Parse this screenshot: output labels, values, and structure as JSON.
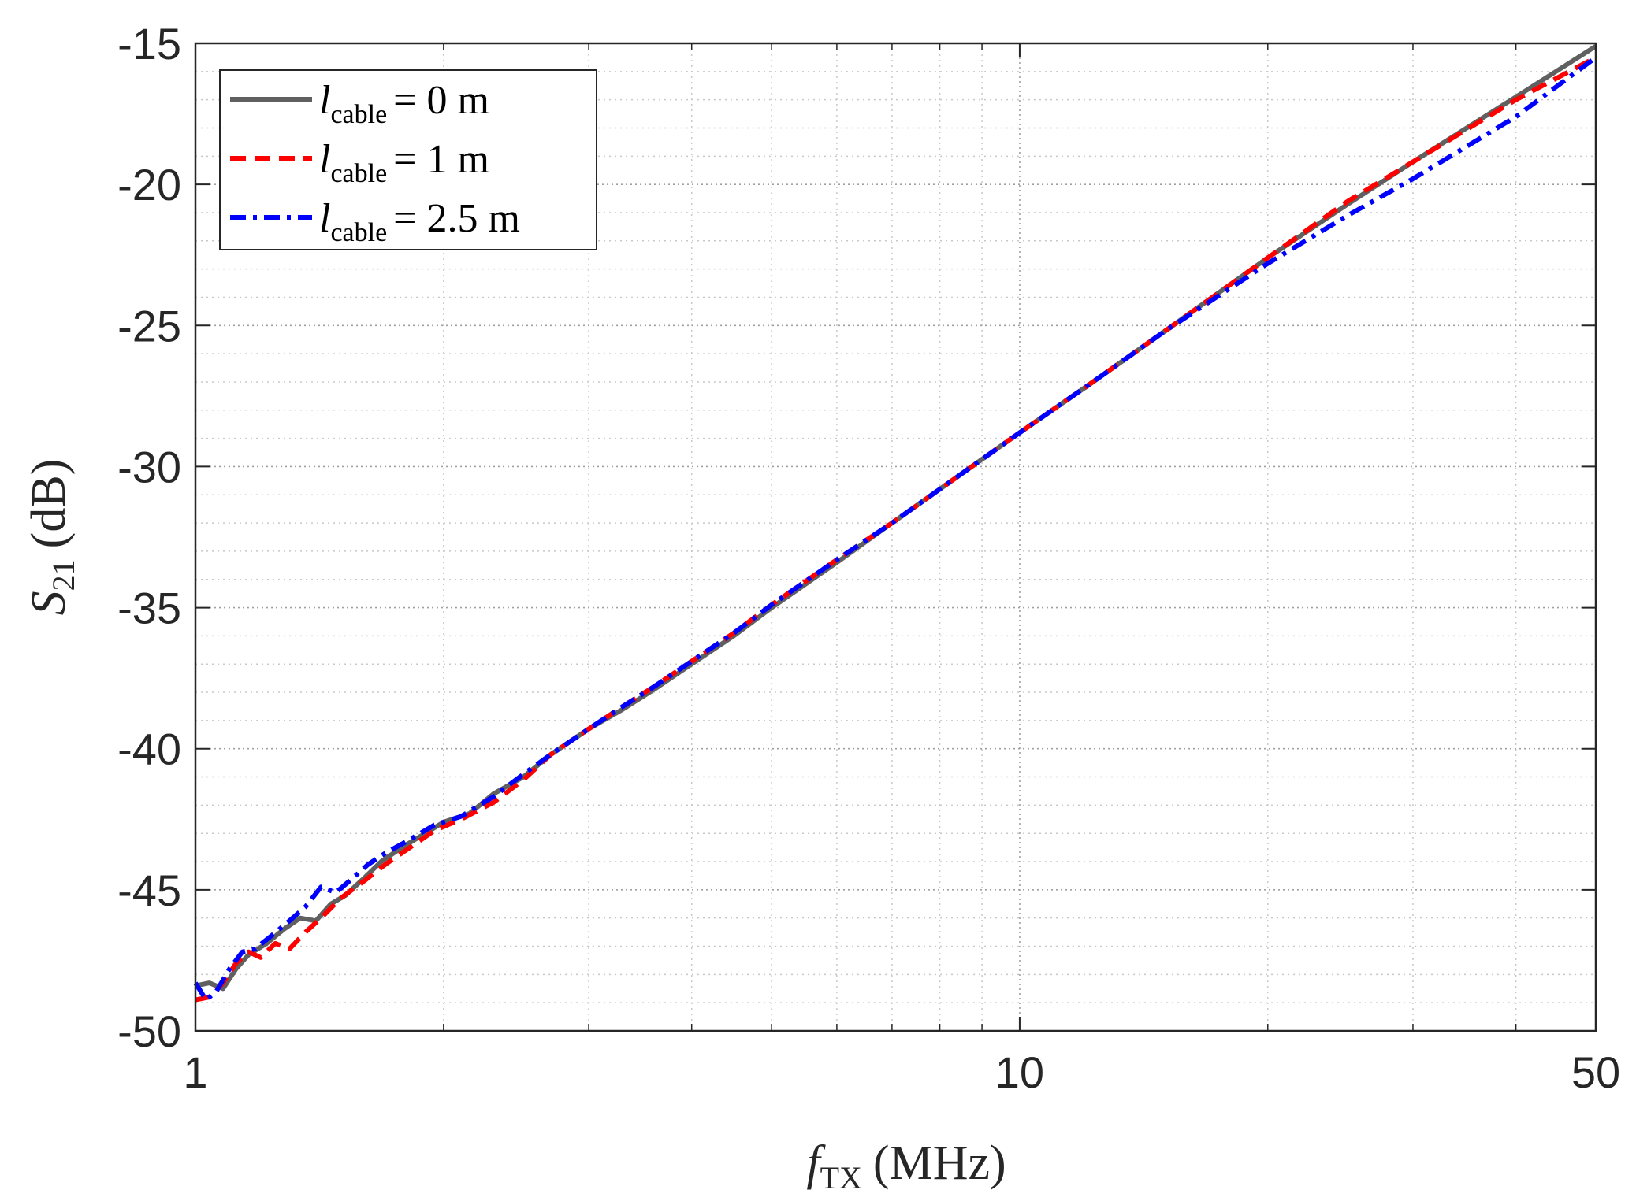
{
  "chart_data": {
    "type": "line",
    "x_scale": "log",
    "xlim": [
      1,
      50
    ],
    "ylim": [
      -50,
      -15
    ],
    "x_ticks": [
      1,
      10,
      50
    ],
    "x_tick_labels": [
      "1",
      "10",
      "50"
    ],
    "y_ticks": [
      -50,
      -45,
      -40,
      -35,
      -30,
      -25,
      -20,
      -15
    ],
    "y_tick_labels": [
      "-50",
      "-45",
      "-40",
      "-35",
      "-30",
      "-25",
      "-20",
      "-15"
    ],
    "xlabel": {
      "main": "f",
      "sub": "TX",
      "unit": "(MHz)"
    },
    "ylabel": {
      "main": "S",
      "sub": "21",
      "unit": "(dB)"
    },
    "grid": true,
    "minor_grid": true,
    "legend_position": "top-left",
    "series": [
      {
        "name": "l_cable = 0 m",
        "legend": {
          "main": "l",
          "sub": "cable",
          "rest": "= 0 m"
        },
        "color": "#606060",
        "dash": "solid",
        "x": [
          1.0,
          1.04,
          1.08,
          1.12,
          1.16,
          1.22,
          1.28,
          1.34,
          1.4,
          1.46,
          1.52,
          1.6,
          1.68,
          1.78,
          1.9,
          2.0,
          2.15,
          2.3,
          2.5,
          2.7,
          3.0,
          3.3,
          3.6,
          4.0,
          4.5,
          5.0,
          6.0,
          7.0,
          8.0,
          10.0,
          12.0,
          15.0,
          20.0,
          25.0,
          30.0,
          40.0,
          50.0
        ],
        "y": [
          -48.4,
          -48.3,
          -48.5,
          -47.8,
          -47.3,
          -46.9,
          -46.4,
          -46.0,
          -46.1,
          -45.5,
          -45.2,
          -44.6,
          -44.0,
          -43.5,
          -43.0,
          -42.6,
          -42.3,
          -41.6,
          -41.0,
          -40.2,
          -39.3,
          -38.6,
          -37.9,
          -37.0,
          -36.0,
          -35.0,
          -33.4,
          -32.0,
          -30.8,
          -28.8,
          -27.2,
          -25.2,
          -22.6,
          -20.7,
          -19.2,
          -16.9,
          -15.1
        ]
      },
      {
        "name": "l_cable = 1 m",
        "legend": {
          "main": "l",
          "sub": "cable",
          "rest": "= 1 m"
        },
        "color": "#ff0000",
        "dash": "dashed",
        "x": [
          1.0,
          1.04,
          1.08,
          1.12,
          1.16,
          1.2,
          1.25,
          1.3,
          1.36,
          1.42,
          1.5,
          1.6,
          1.7,
          1.8,
          1.95,
          2.1,
          2.3,
          2.5,
          2.7,
          3.0,
          3.3,
          3.6,
          4.0,
          4.5,
          5.0,
          6.0,
          7.0,
          8.0,
          10.0,
          12.0,
          15.0,
          20.0,
          25.0,
          30.0,
          40.0,
          50.0
        ],
        "y": [
          -48.9,
          -48.8,
          -48.3,
          -47.6,
          -47.2,
          -47.4,
          -46.9,
          -47.1,
          -46.5,
          -46.0,
          -45.3,
          -44.7,
          -44.1,
          -43.6,
          -42.9,
          -42.5,
          -41.9,
          -41.1,
          -40.2,
          -39.3,
          -38.5,
          -37.8,
          -36.9,
          -35.9,
          -34.9,
          -33.3,
          -32.0,
          -30.8,
          -28.8,
          -27.2,
          -25.2,
          -22.6,
          -20.6,
          -19.2,
          -17.0,
          -15.5
        ]
      },
      {
        "name": "l_cable = 2.5 m",
        "legend": {
          "main": "l",
          "sub": "cable",
          "rest": "= 2.5 m"
        },
        "color": "#0000ff",
        "dash": "dashdot",
        "x": [
          1.0,
          1.03,
          1.06,
          1.1,
          1.14,
          1.18,
          1.24,
          1.3,
          1.36,
          1.42,
          1.48,
          1.55,
          1.62,
          1.7,
          1.8,
          1.95,
          2.1,
          2.3,
          2.5,
          2.7,
          3.0,
          3.3,
          3.6,
          4.0,
          4.5,
          5.0,
          6.0,
          7.0,
          8.0,
          10.0,
          12.0,
          15.0,
          20.0,
          25.0,
          30.0,
          40.0,
          50.0
        ],
        "y": [
          -48.3,
          -48.9,
          -48.6,
          -47.8,
          -47.2,
          -47.1,
          -46.6,
          -46.1,
          -45.6,
          -44.9,
          -45.1,
          -44.6,
          -44.1,
          -43.7,
          -43.3,
          -42.7,
          -42.4,
          -41.7,
          -40.9,
          -40.2,
          -39.3,
          -38.5,
          -37.8,
          -36.9,
          -35.9,
          -34.9,
          -33.3,
          -32.0,
          -30.8,
          -28.8,
          -27.2,
          -25.2,
          -22.8,
          -21.1,
          -19.8,
          -17.6,
          -15.5
        ]
      }
    ]
  }
}
